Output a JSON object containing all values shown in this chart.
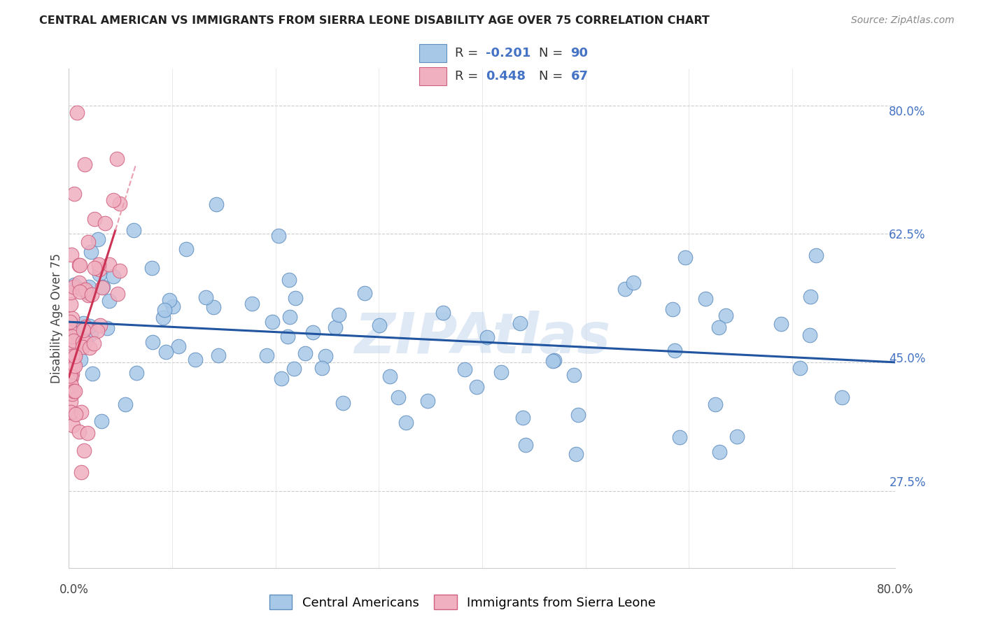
{
  "title": "CENTRAL AMERICAN VS IMMIGRANTS FROM SIERRA LEONE DISABILITY AGE OVER 75 CORRELATION CHART",
  "source": "Source: ZipAtlas.com",
  "ylabel": "Disability Age Over 75",
  "y_tick_labels": [
    "27.5%",
    "45.0%",
    "62.5%",
    "80.0%"
  ],
  "y_ticks": [
    27.5,
    45.0,
    62.5,
    80.0
  ],
  "x_range": [
    0.0,
    80.0
  ],
  "y_range": [
    17.0,
    85.0
  ],
  "blue_color": "#a8c8e8",
  "blue_edge_color": "#6090c0",
  "pink_color": "#f0b0c0",
  "pink_edge_color": "#d06080",
  "blue_line_color": "#2255a0",
  "pink_line_color": "#cc3355",
  "pink_dash_color": "#e8a0b0",
  "watermark": "ZIPAtlas",
  "blue_r": "-0.201",
  "blue_n": "90",
  "pink_r": "0.448",
  "pink_n": "67",
  "accent_color": "#4472c4",
  "blue_line_y0": 50.5,
  "blue_line_y1": 45.0,
  "pink_line_x0": 0.0,
  "pink_line_y0": 43.0,
  "pink_line_x1": 4.5,
  "pink_line_y1": 63.0,
  "pink_dash_x0": 4.5,
  "pink_dash_y0": 63.0,
  "pink_dash_x1": 6.5,
  "pink_dash_y1": 72.0
}
